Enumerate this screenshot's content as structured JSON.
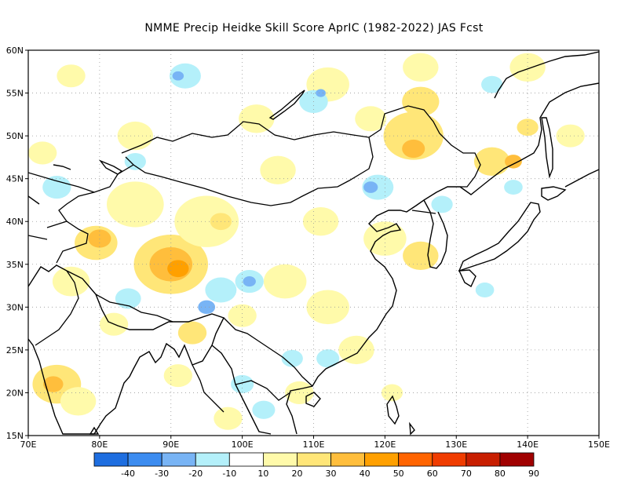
{
  "title": "NMME Precip Heidke Skill Score AprIC (1982-2022) JAS Fcst",
  "map": {
    "lon_range": [
      70,
      150
    ],
    "lat_range": [
      15,
      60
    ],
    "lon_ticks": [
      "70E",
      "80E",
      "90E",
      "100E",
      "110E",
      "120E",
      "130E",
      "140E",
      "150E"
    ],
    "lat_ticks": [
      "15N",
      "20N",
      "25N",
      "30N",
      "35N",
      "40N",
      "45N",
      "50N",
      "55N",
      "60N"
    ]
  },
  "colorbar": {
    "colors": [
      "#1e6ee0",
      "#3c8cf0",
      "#78b4f5",
      "#b4f0fa",
      "#ffffff",
      "#fffaaa",
      "#ffe678",
      "#ffbe3c",
      "#ffa000",
      "#ff6400",
      "#f03c00",
      "#c81e00",
      "#a00000"
    ],
    "labels": [
      "-40",
      "-30",
      "-20",
      "-10",
      "10",
      "20",
      "30",
      "40",
      "50",
      "60",
      "70",
      "80",
      "90"
    ]
  },
  "patches": [
    {
      "lon": 79.5,
      "lat": 37.5,
      "r": 3.0,
      "c": "#ffe678"
    },
    {
      "lon": 80,
      "lat": 38,
      "r": 1.6,
      "c": "#ffbe3c"
    },
    {
      "lon": 90,
      "lat": 35,
      "r": 5.2,
      "c": "#ffe678"
    },
    {
      "lon": 90,
      "lat": 35,
      "r": 3.0,
      "c": "#ffbe3c"
    },
    {
      "lon": 91,
      "lat": 34.5,
      "r": 1.5,
      "c": "#ffa000"
    },
    {
      "lon": 95,
      "lat": 40,
      "r": 4.5,
      "c": "#fffaaa"
    },
    {
      "lon": 97,
      "lat": 40,
      "r": 1.5,
      "c": "#ffe678"
    },
    {
      "lon": 85,
      "lat": 42,
      "r": 4.0,
      "c": "#fffaaa"
    },
    {
      "lon": 74,
      "lat": 21,
      "r": 3.4,
      "c": "#ffe678"
    },
    {
      "lon": 73.5,
      "lat": 21,
      "r": 1.4,
      "c": "#ffbe3c"
    },
    {
      "lon": 77,
      "lat": 19,
      "r": 2.5,
      "c": "#fffaaa"
    },
    {
      "lon": 76,
      "lat": 33,
      "r": 2.6,
      "c": "#fffaaa"
    },
    {
      "lon": 124,
      "lat": 50,
      "r": 4.2,
      "c": "#ffe678"
    },
    {
      "lon": 124,
      "lat": 48.5,
      "r": 1.6,
      "c": "#ffbe3c"
    },
    {
      "lon": 125,
      "lat": 54,
      "r": 2.6,
      "c": "#ffe678"
    },
    {
      "lon": 118,
      "lat": 52,
      "r": 2.2,
      "c": "#fffaaa"
    },
    {
      "lon": 135,
      "lat": 47,
      "r": 2.5,
      "c": "#ffe678"
    },
    {
      "lon": 138,
      "lat": 47,
      "r": 1.2,
      "c": "#ffbe3c"
    },
    {
      "lon": 120,
      "lat": 38,
      "r": 3.0,
      "c": "#fffaaa"
    },
    {
      "lon": 125,
      "lat": 36,
      "r": 2.5,
      "c": "#ffe678"
    },
    {
      "lon": 106,
      "lat": 33,
      "r": 3.0,
      "c": "#fffaaa"
    },
    {
      "lon": 112,
      "lat": 30,
      "r": 3.0,
      "c": "#fffaaa"
    },
    {
      "lon": 111,
      "lat": 40,
      "r": 2.5,
      "c": "#fffaaa"
    },
    {
      "lon": 116,
      "lat": 25,
      "r": 2.5,
      "c": "#fffaaa"
    },
    {
      "lon": 121,
      "lat": 20,
      "r": 1.5,
      "c": "#fffaaa"
    },
    {
      "lon": 91,
      "lat": 22,
      "r": 2.0,
      "c": "#fffaaa"
    },
    {
      "lon": 93,
      "lat": 27,
      "r": 2.0,
      "c": "#ffe678"
    },
    {
      "lon": 100,
      "lat": 29,
      "r": 2.0,
      "c": "#fffaaa"
    },
    {
      "lon": 105,
      "lat": 46,
      "r": 2.5,
      "c": "#fffaaa"
    },
    {
      "lon": 85,
      "lat": 50,
      "r": 2.5,
      "c": "#fffaaa"
    },
    {
      "lon": 102,
      "lat": 52,
      "r": 2.5,
      "c": "#fffaaa"
    },
    {
      "lon": 112,
      "lat": 56,
      "r": 3.0,
      "c": "#fffaaa"
    },
    {
      "lon": 125,
      "lat": 58,
      "r": 2.5,
      "c": "#fffaaa"
    },
    {
      "lon": 140,
      "lat": 58,
      "r": 2.5,
      "c": "#fffaaa"
    },
    {
      "lon": 146,
      "lat": 50,
      "r": 2.0,
      "c": "#fffaaa"
    },
    {
      "lon": 140,
      "lat": 51,
      "r": 1.5,
      "c": "#ffe678"
    },
    {
      "lon": 76,
      "lat": 57,
      "r": 2.0,
      "c": "#fffaaa"
    },
    {
      "lon": 72,
      "lat": 48,
      "r": 2.0,
      "c": "#fffaaa"
    },
    {
      "lon": 82,
      "lat": 28,
      "r": 2.0,
      "c": "#fffaaa"
    },
    {
      "lon": 98,
      "lat": 17,
      "r": 2.0,
      "c": "#fffaaa"
    },
    {
      "lon": 108,
      "lat": 20,
      "r": 2.0,
      "c": "#fffaaa"
    },
    {
      "lon": 92,
      "lat": 57,
      "r": 2.2,
      "c": "#b4f0fa"
    },
    {
      "lon": 91,
      "lat": 57,
      "r": 0.8,
      "c": "#78b4f5"
    },
    {
      "lon": 110,
      "lat": 54,
      "r": 2.0,
      "c": "#b4f0fa"
    },
    {
      "lon": 111,
      "lat": 55,
      "r": 0.7,
      "c": "#78b4f5"
    },
    {
      "lon": 119,
      "lat": 44,
      "r": 2.2,
      "c": "#b4f0fa"
    },
    {
      "lon": 118,
      "lat": 44,
      "r": 1.0,
      "c": "#78b4f5"
    },
    {
      "lon": 101,
      "lat": 33,
      "r": 2.0,
      "c": "#b4f0fa"
    },
    {
      "lon": 101,
      "lat": 33,
      "r": 0.9,
      "c": "#78b4f5"
    },
    {
      "lon": 97,
      "lat": 32,
      "r": 2.2,
      "c": "#b4f0fa"
    },
    {
      "lon": 95,
      "lat": 30,
      "r": 1.2,
      "c": "#78b4f5"
    },
    {
      "lon": 84,
      "lat": 31,
      "r": 1.8,
      "c": "#b4f0fa"
    },
    {
      "lon": 74,
      "lat": 44,
      "r": 2.0,
      "c": "#b4f0fa"
    },
    {
      "lon": 100,
      "lat": 21,
      "r": 1.6,
      "c": "#b4f0fa"
    },
    {
      "lon": 103,
      "lat": 18,
      "r": 1.6,
      "c": "#b4f0fa"
    },
    {
      "lon": 107,
      "lat": 24,
      "r": 1.5,
      "c": "#b4f0fa"
    },
    {
      "lon": 112,
      "lat": 24,
      "r": 1.6,
      "c": "#b4f0fa"
    },
    {
      "lon": 128,
      "lat": 42,
      "r": 1.5,
      "c": "#b4f0fa"
    },
    {
      "lon": 134,
      "lat": 32,
      "r": 1.3,
      "c": "#b4f0fa"
    },
    {
      "lon": 138,
      "lat": 44,
      "r": 1.3,
      "c": "#b4f0fa"
    },
    {
      "lon": 85,
      "lat": 47,
      "r": 1.5,
      "c": "#b4f0fa"
    },
    {
      "lon": 135,
      "lat": 56,
      "r": 1.5,
      "c": "#b4f0fa"
    }
  ]
}
